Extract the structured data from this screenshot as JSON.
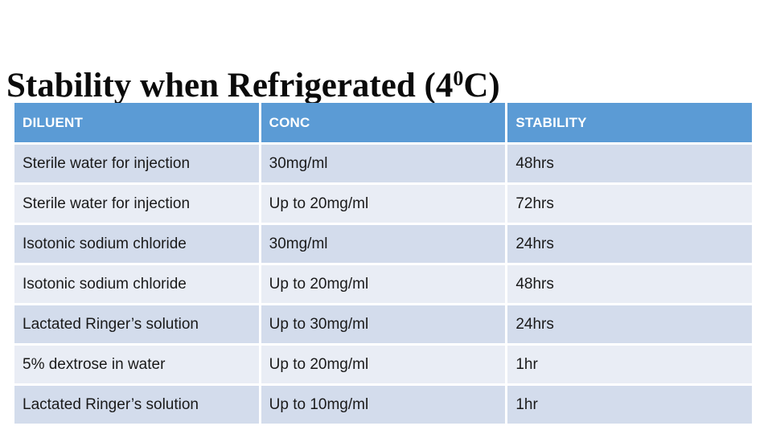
{
  "slide": {
    "title": {
      "before_sup": "Stability when Refrigerated (4",
      "sup": "0",
      "after_sup": "C)"
    }
  },
  "table": {
    "columns": [
      "DILUENT",
      "CONC",
      "STABILITY"
    ],
    "rows": [
      [
        "Sterile water for injection",
        "30mg/ml",
        "48hrs"
      ],
      [
        "Sterile water for injection",
        "Up to 20mg/ml",
        "72hrs"
      ],
      [
        "Isotonic sodium chloride",
        "30mg/ml",
        "24hrs"
      ],
      [
        "Isotonic sodium chloride",
        "Up to 20mg/ml",
        "48hrs"
      ],
      [
        "Lactated Ringer’s solution",
        "Up to 30mg/ml",
        "24hrs"
      ],
      [
        "5% dextrose in water",
        "Up to 20mg/ml",
        "1hr"
      ],
      [
        "Lactated Ringer’s solution",
        "Up to 10mg/ml",
        "1hr"
      ]
    ],
    "colors": {
      "header_bg": "#5b9bd5",
      "header_text": "#ffffff",
      "row_odd_bg": "#d3dcec",
      "row_even_bg": "#e9edf5",
      "body_text": "#1a1a1a"
    }
  }
}
